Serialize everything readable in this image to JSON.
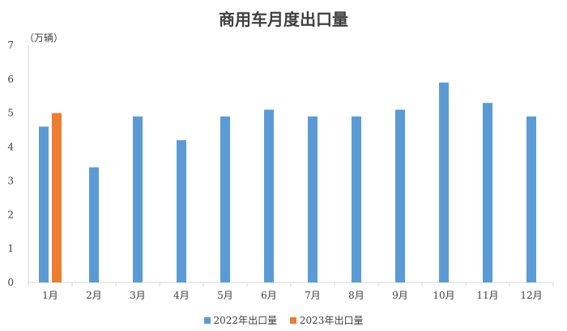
{
  "chart_data": {
    "type": "bar",
    "title": "商用车月度出口量",
    "ylabel": "（万辆）",
    "xlabel": "",
    "categories": [
      "1月",
      "2月",
      "3月",
      "4月",
      "5月",
      "6月",
      "7月",
      "8月",
      "9月",
      "10月",
      "11月",
      "12月"
    ],
    "series": [
      {
        "name": "2022年出口量",
        "color": "#5B9BD5",
        "values": [
          4.6,
          3.4,
          4.9,
          4.2,
          4.9,
          5.1,
          4.9,
          4.9,
          5.1,
          5.9,
          5.3,
          4.9
        ]
      },
      {
        "name": "2023年出口量",
        "color": "#ED7D31",
        "values": [
          5.0,
          null,
          null,
          null,
          null,
          null,
          null,
          null,
          null,
          null,
          null,
          null
        ]
      }
    ],
    "ylim": [
      0,
      7
    ],
    "yticks": [
      0,
      1,
      2,
      3,
      4,
      5,
      6,
      7
    ],
    "grid": false,
    "legend_position": "bottom"
  }
}
